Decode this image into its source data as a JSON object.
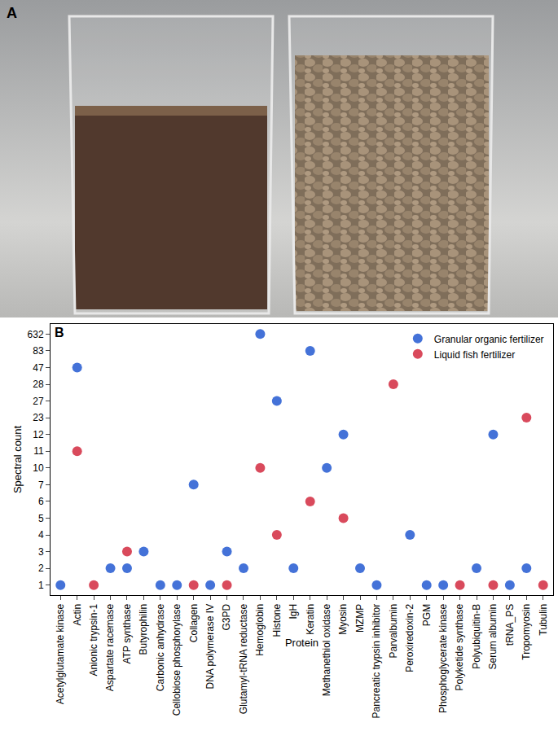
{
  "photo": {
    "label": "A"
  },
  "chart_data": {
    "type": "scatter",
    "panel_label": "B",
    "x_label": "Protein",
    "y_label": "Spectral count",
    "categories": [
      "Acetylglutamate kinase",
      "Actin",
      "Anionic trypsin-1",
      "Aspartate racemase",
      "ATP synthase",
      "Butyrophilin",
      "Carbonic anhydrase",
      "Cellobiose phosphorylase",
      "Collagen",
      "DNA polymerase IV",
      "G3PD",
      "Glutamyl-tRNA reductase",
      "Hemoglobin",
      "Histone",
      "IgH",
      "Keratin",
      "Methanethiol oxidase",
      "Myosin",
      "MZMP",
      "Pancreatic trypsin inhibitor",
      "Parvalbumin",
      "Peroxiredoxin-2",
      "PGM",
      "Phosphoglycerate kinase",
      "Polyketide synthase",
      "Polyubiquitin-B",
      "Serum albumin",
      "tRNA_PS",
      "Tropomyosin",
      "Tubulin"
    ],
    "y_categories": [
      1,
      2,
      3,
      4,
      5,
      6,
      7,
      10,
      11,
      12,
      23,
      27,
      28,
      47,
      83,
      632
    ],
    "series": [
      {
        "name": "Granular organic fertilizer",
        "color": "#4472d8",
        "marker": "circle",
        "values": [
          1,
          47,
          null,
          2,
          2,
          3,
          1,
          1,
          7,
          1,
          3,
          2,
          632,
          27,
          2,
          83,
          10,
          12,
          2,
          1,
          null,
          4,
          1,
          1,
          null,
          2,
          12,
          1,
          2,
          null
        ]
      },
      {
        "name": "Liquid fish fertilizer",
        "color": "#d94a5c",
        "marker": "circle",
        "values": [
          null,
          11,
          1,
          null,
          3,
          null,
          null,
          null,
          1,
          null,
          1,
          null,
          10,
          4,
          null,
          6,
          null,
          5,
          null,
          null,
          28,
          null,
          null,
          null,
          1,
          null,
          1,
          null,
          23,
          1
        ]
      }
    ],
    "legend": "top right",
    "grid": false
  }
}
